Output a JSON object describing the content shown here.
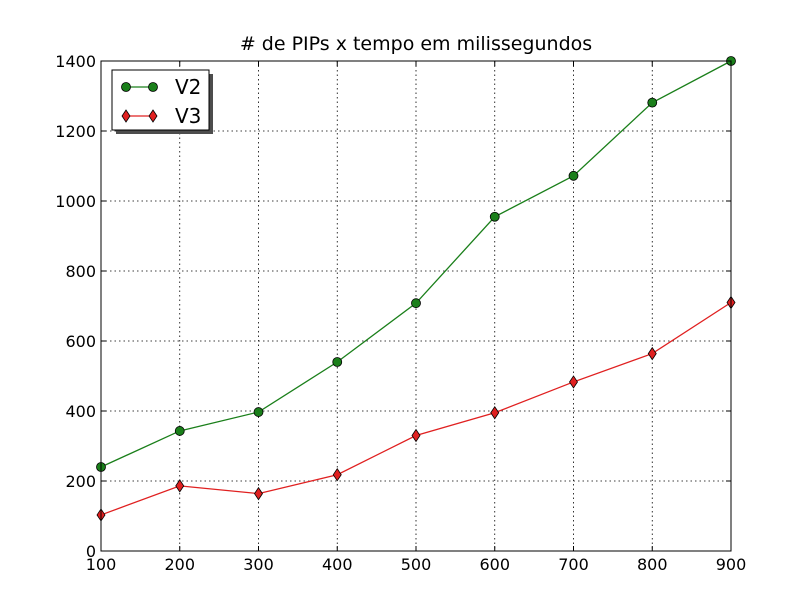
{
  "chart_data": {
    "type": "line",
    "title": "# de PIPs x tempo em milissegundos",
    "xlabel": "",
    "ylabel": "",
    "x": [
      100,
      200,
      300,
      400,
      500,
      600,
      700,
      800,
      900
    ],
    "xlim": [
      100,
      900
    ],
    "ylim": [
      0,
      1400
    ],
    "xticks": [
      "100",
      "200",
      "300",
      "400",
      "500",
      "600",
      "700",
      "800",
      "900"
    ],
    "yticks": [
      "0",
      "200",
      "400",
      "600",
      "800",
      "1000",
      "1200",
      "1400"
    ],
    "grid": true,
    "legend_position": "top-left",
    "series": [
      {
        "name": "V2",
        "color": "#1a7f1a",
        "marker": "circle",
        "values": [
          240,
          343,
          397,
          540,
          708,
          955,
          1072,
          1281,
          1400
        ]
      },
      {
        "name": "V3",
        "color": "#e02020",
        "marker": "diamond",
        "values": [
          103,
          186,
          164,
          218,
          330,
          395,
          483,
          564,
          710
        ]
      }
    ]
  }
}
